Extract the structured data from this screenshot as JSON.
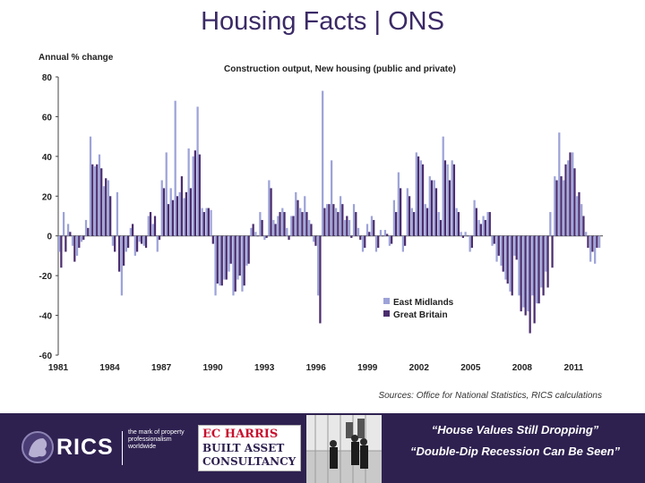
{
  "slide": {
    "title": "Housing Facts | ONS"
  },
  "chart_data": {
    "type": "bar",
    "title": "Construction output, New housing (public and private)",
    "ylabel": "Annual % change",
    "ylim": [
      -60,
      80
    ],
    "yticks": [
      80,
      60,
      40,
      20,
      0,
      -20,
      -40,
      -60
    ],
    "xlim": [
      1981,
      2012.7
    ],
    "xticks": [
      1981,
      1984,
      1987,
      1990,
      1993,
      1996,
      1999,
      2002,
      2005,
      2008,
      2011
    ],
    "legend": "bottom-right",
    "source": "Sources: Office for National Statistics, RICS calculations",
    "colors": {
      "East Midlands": "#9da3d8",
      "Great Britain": "#4b2d6e"
    },
    "series": [
      {
        "name": "East Midlands",
        "values": [
          -8,
          12,
          6,
          -5,
          -10,
          -3,
          8,
          50,
          35,
          41,
          25,
          28,
          -5,
          22,
          -30,
          -8,
          4,
          -10,
          -3,
          -5,
          10,
          6,
          -8,
          28,
          42,
          24,
          68,
          22,
          19,
          44,
          40,
          65,
          14,
          14,
          13,
          -30,
          -25,
          -22,
          -18,
          -30,
          -22,
          -28,
          -15,
          4,
          2,
          12,
          -2,
          28,
          8,
          10,
          14,
          4,
          10,
          22,
          14,
          20,
          8,
          -3,
          -30,
          73,
          16,
          38,
          14,
          20,
          8,
          8,
          16,
          4,
          -8,
          6,
          10,
          -8,
          3,
          3,
          -5,
          18,
          32,
          -8,
          24,
          14,
          42,
          38,
          16,
          30,
          28,
          12,
          50,
          36,
          38,
          14,
          2,
          2,
          -8,
          18,
          8,
          10,
          12,
          -5,
          -13,
          -15,
          -22,
          -28,
          -10,
          -30,
          -36,
          -38,
          -30,
          -34,
          -26,
          -18,
          12,
          30,
          52,
          28,
          38,
          42,
          20,
          16,
          2,
          -13,
          -14,
          -6
        ]
      },
      {
        "name": "Great Britain",
        "values": [
          -16,
          -8,
          2,
          -13,
          -6,
          -2,
          4,
          36,
          36,
          34,
          29,
          20,
          -8,
          -18,
          -15,
          -6,
          6,
          -8,
          -4,
          -6,
          12,
          10,
          -2,
          24,
          16,
          18,
          20,
          30,
          22,
          24,
          43,
          41,
          12,
          14,
          -4,
          -24,
          -25,
          -22,
          -14,
          -28,
          -20,
          -25,
          -14,
          6,
          0,
          8,
          -1,
          24,
          6,
          12,
          12,
          -2,
          10,
          18,
          12,
          12,
          6,
          -5,
          -44,
          14,
          16,
          16,
          12,
          16,
          10,
          -1,
          12,
          -2,
          -6,
          2,
          8,
          -6,
          0,
          1,
          -4,
          12,
          24,
          -5,
          20,
          12,
          40,
          36,
          14,
          28,
          24,
          8,
          38,
          28,
          36,
          12,
          -1,
          0,
          -6,
          14,
          6,
          8,
          12,
          -4,
          -10,
          -18,
          -24,
          -30,
          -12,
          -38,
          -40,
          -49,
          -44,
          -34,
          -30,
          -26,
          -16,
          28,
          30,
          36,
          42,
          34,
          22,
          10,
          -6,
          -8,
          -6
        ]
      }
    ]
  },
  "footer": {
    "rics_name": "RICS",
    "rics_tagline": "the mark of property professionalism worldwide",
    "partner_line1": "EC HARRIS",
    "partner_line2": "BUILT ASSET",
    "partner_line3": "CONSULTANCY",
    "quote1": "“House Values Still Dropping”",
    "quote2": "“Double-Dip Recession Can Be Seen”"
  }
}
